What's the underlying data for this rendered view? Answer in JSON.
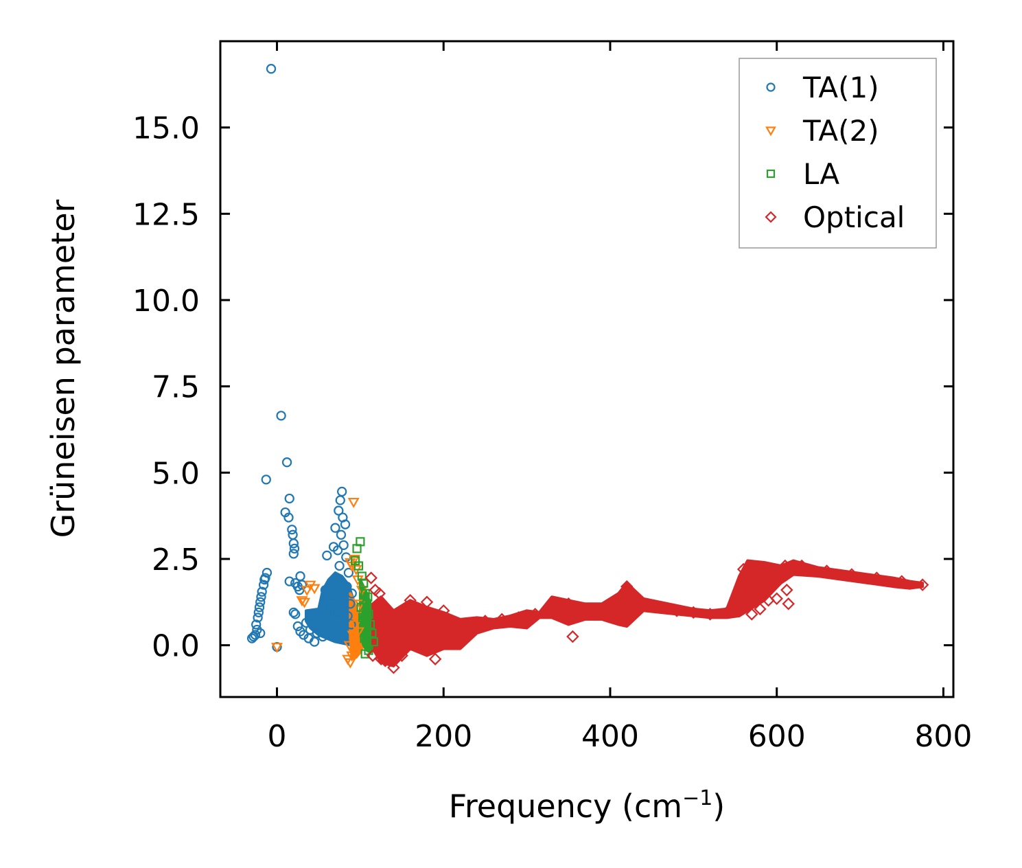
{
  "chart_data": {
    "type": "scatter",
    "title": "",
    "xlabel": "Frequency (cm",
    "xlabel_sup": "−1",
    "xlabel_close": ")",
    "ylabel": "Grüneisen parameter",
    "xlim": [
      -68,
      812
    ],
    "ylim": [
      -1.5,
      17.5
    ],
    "xticks": [
      0,
      200,
      400,
      600,
      800
    ],
    "xtick_labels": [
      "0",
      "200",
      "400",
      "600",
      "800"
    ],
    "yticks": [
      0.0,
      2.5,
      5.0,
      7.5,
      10.0,
      12.5,
      15.0
    ],
    "ytick_labels": [
      "0.0",
      "2.5",
      "5.0",
      "7.5",
      "10.0",
      "12.5",
      "15.0"
    ],
    "legend_position": "top-right",
    "series": [
      {
        "name": "TA(1)",
        "marker": "circle",
        "color": "#1f77b4",
        "points": [
          [
            -7,
            16.7
          ],
          [
            5,
            6.65
          ],
          [
            12,
            5.3
          ],
          [
            -13,
            4.8
          ],
          [
            15,
            4.25
          ],
          [
            10,
            3.85
          ],
          [
            14,
            3.7
          ],
          [
            18,
            3.35
          ],
          [
            19,
            3.2
          ],
          [
            20,
            2.95
          ],
          [
            21,
            2.8
          ],
          [
            20,
            2.65
          ],
          [
            -30,
            0.2
          ],
          [
            -28,
            0.25
          ],
          [
            -26,
            0.3
          ],
          [
            -24,
            0.45
          ],
          [
            -25,
            0.6
          ],
          [
            -23,
            0.8
          ],
          [
            -22,
            0.95
          ],
          [
            -21,
            1.1
          ],
          [
            -20,
            1.25
          ],
          [
            -19,
            1.4
          ],
          [
            -18,
            1.55
          ],
          [
            -16,
            1.75
          ],
          [
            -15,
            1.9
          ],
          [
            -14,
            1.95
          ],
          [
            -12,
            2.1
          ],
          [
            -20,
            0.35
          ],
          [
            15,
            1.85
          ],
          [
            22,
            1.8
          ],
          [
            25,
            1.7
          ],
          [
            27,
            1.6
          ],
          [
            28,
            2.0
          ],
          [
            30,
            1.75
          ],
          [
            20,
            0.95
          ],
          [
            22,
            0.9
          ],
          [
            25,
            0.55
          ],
          [
            28,
            0.4
          ],
          [
            32,
            0.3
          ],
          [
            35,
            0.65
          ],
          [
            38,
            0.2
          ],
          [
            40,
            0.45
          ],
          [
            42,
            0.85
          ],
          [
            45,
            0.1
          ],
          [
            48,
            0.35
          ],
          [
            50,
            0.6
          ],
          [
            52,
            0.9
          ],
          [
            55,
            0.25
          ],
          [
            58,
            1.6
          ],
          [
            60,
            2.6
          ],
          [
            62,
            1.3
          ],
          [
            65,
            0.5
          ],
          [
            68,
            2.85
          ],
          [
            70,
            3.4
          ],
          [
            72,
            1.9
          ],
          [
            74,
            3.9
          ],
          [
            75,
            2.3
          ],
          [
            77,
            3.2
          ],
          [
            78,
            4.45
          ],
          [
            80,
            2.9
          ],
          [
            82,
            3.5
          ],
          [
            84,
            1.7
          ],
          [
            86,
            2.1
          ],
          [
            88,
            1.2
          ],
          [
            90,
            1.5
          ],
          [
            76,
            4.2
          ],
          [
            79,
            3.7
          ],
          [
            83,
            2.55
          ],
          [
            73,
            2.75
          ],
          [
            66,
            1.05
          ],
          [
            0,
            -0.05
          ],
          [
            62,
            0.75
          ],
          [
            67,
            1.15
          ],
          [
            71,
            0.95
          ],
          [
            85,
            0.85
          ],
          [
            89,
            0.6
          ]
        ]
      },
      {
        "name": "TA(2)",
        "marker": "triangle-down",
        "color": "#ff7f0e",
        "points": [
          [
            92,
            4.15
          ],
          [
            0,
            -0.05
          ],
          [
            30,
            1.3
          ],
          [
            33,
            1.25
          ],
          [
            36,
            1.6
          ],
          [
            40,
            1.75
          ],
          [
            45,
            1.65
          ],
          [
            88,
            2.4
          ],
          [
            90,
            2.3
          ],
          [
            93,
            2.5
          ],
          [
            95,
            2.2
          ],
          [
            97,
            1.9
          ],
          [
            85,
            -0.4
          ],
          [
            88,
            -0.5
          ],
          [
            90,
            -0.3
          ],
          [
            92,
            -0.2
          ],
          [
            95,
            0.1
          ],
          [
            98,
            0.4
          ],
          [
            100,
            1.2
          ],
          [
            102,
            1.6
          ],
          [
            96,
            0.9
          ],
          [
            94,
            0.6
          ],
          [
            91,
            0.3
          ],
          [
            87,
            0.0
          ]
        ]
      },
      {
        "name": "LA",
        "marker": "square",
        "color": "#2ca02c",
        "points": [
          [
            100,
            3.0
          ],
          [
            96,
            2.8
          ],
          [
            94,
            2.45
          ],
          [
            98,
            2.3
          ],
          [
            102,
            2.0
          ],
          [
            104,
            1.8
          ],
          [
            106,
            1.5
          ],
          [
            108,
            1.2
          ],
          [
            110,
            0.9
          ],
          [
            112,
            0.6
          ],
          [
            114,
            0.35
          ],
          [
            106,
            -0.25
          ],
          [
            110,
            -0.15
          ],
          [
            116,
            0.1
          ],
          [
            103,
            0.8
          ],
          [
            105,
            0.2
          ],
          [
            101,
            1.1
          ],
          [
            109,
            1.4
          ]
        ]
      },
      {
        "name": "Optical",
        "marker": "diamond",
        "color": "#d62728",
        "points": [
          [
            113,
            1.95
          ],
          [
            118,
            1.6
          ],
          [
            123,
            1.5
          ],
          [
            115,
            -0.3
          ],
          [
            125,
            -0.4
          ],
          [
            130,
            -0.45
          ],
          [
            140,
            -0.65
          ],
          [
            150,
            -0.3
          ],
          [
            160,
            1.3
          ],
          [
            180,
            1.25
          ],
          [
            190,
            -0.4
          ],
          [
            200,
            1.0
          ],
          [
            220,
            0.2
          ],
          [
            240,
            0.6
          ],
          [
            250,
            0.7
          ],
          [
            270,
            0.75
          ],
          [
            290,
            0.8
          ],
          [
            310,
            0.9
          ],
          [
            330,
            1.05
          ],
          [
            350,
            1.2
          ],
          [
            355,
            0.25
          ],
          [
            380,
            1.0
          ],
          [
            400,
            1.15
          ],
          [
            420,
            1.7
          ],
          [
            440,
            1.2
          ],
          [
            460,
            1.1
          ],
          [
            480,
            1.0
          ],
          [
            500,
            0.95
          ],
          [
            520,
            0.9
          ],
          [
            540,
            0.95
          ],
          [
            560,
            2.2
          ],
          [
            570,
            0.9
          ],
          [
            580,
            1.05
          ],
          [
            590,
            1.3
          ],
          [
            600,
            1.35
          ],
          [
            610,
            2.3
          ],
          [
            612,
            1.6
          ],
          [
            614,
            1.2
          ],
          [
            630,
            2.3
          ],
          [
            660,
            2.15
          ],
          [
            690,
            2.05
          ],
          [
            720,
            1.95
          ],
          [
            750,
            1.85
          ],
          [
            775,
            1.75
          ]
        ]
      }
    ],
    "bands": [
      {
        "series": "TA(1)",
        "color": "#1f77b4",
        "upper": [
          [
            35,
            1.0
          ],
          [
            50,
            1.05
          ],
          [
            55,
            1.6
          ],
          [
            62,
            1.9
          ],
          [
            70,
            2.1
          ],
          [
            78,
            2.0
          ],
          [
            86,
            1.75
          ],
          [
            92,
            1.3
          ],
          [
            96,
            0.9
          ]
        ],
        "lower": [
          [
            96,
            0.1
          ],
          [
            90,
            0.0
          ],
          [
            80,
            0.05
          ],
          [
            70,
            0.1
          ],
          [
            60,
            0.2
          ],
          [
            50,
            0.3
          ],
          [
            40,
            0.5
          ],
          [
            35,
            0.7
          ]
        ]
      },
      {
        "series": "TA(2)",
        "color": "#ff7f0e",
        "upper": [
          [
            88,
            1.5
          ],
          [
            92,
            1.3
          ],
          [
            96,
            1.0
          ],
          [
            100,
            0.9
          ],
          [
            104,
            0.7
          ]
        ],
        "lower": [
          [
            104,
            0.0
          ],
          [
            100,
            -0.2
          ],
          [
            95,
            -0.35
          ],
          [
            90,
            -0.4
          ],
          [
            88,
            0.2
          ]
        ]
      },
      {
        "series": "LA",
        "color": "#2ca02c",
        "upper": [
          [
            100,
            1.9
          ],
          [
            104,
            1.7
          ],
          [
            108,
            1.5
          ],
          [
            112,
            1.2
          ],
          [
            116,
            0.9
          ]
        ],
        "lower": [
          [
            116,
            -0.1
          ],
          [
            112,
            -0.2
          ],
          [
            108,
            -0.15
          ],
          [
            104,
            0.0
          ],
          [
            100,
            0.3
          ]
        ]
      },
      {
        "series": "Optical",
        "color": "#d62728",
        "upper": [
          [
            115,
            1.2
          ],
          [
            125,
            1.4
          ],
          [
            140,
            1.0
          ],
          [
            160,
            1.3
          ],
          [
            180,
            1.1
          ],
          [
            200,
            0.95
          ],
          [
            220,
            0.75
          ],
          [
            240,
            0.8
          ],
          [
            260,
            0.75
          ],
          [
            280,
            0.85
          ],
          [
            300,
            1.0
          ],
          [
            315,
            0.95
          ],
          [
            330,
            1.4
          ],
          [
            350,
            1.3
          ],
          [
            370,
            1.2
          ],
          [
            390,
            1.2
          ],
          [
            410,
            1.5
          ],
          [
            420,
            1.8
          ],
          [
            440,
            1.35
          ],
          [
            460,
            1.25
          ],
          [
            480,
            1.15
          ],
          [
            500,
            1.05
          ],
          [
            520,
            1.0
          ],
          [
            540,
            1.05
          ],
          [
            555,
            2.0
          ],
          [
            565,
            2.45
          ],
          [
            585,
            2.4
          ],
          [
            605,
            2.3
          ],
          [
            620,
            2.45
          ],
          [
            650,
            2.25
          ],
          [
            680,
            2.15
          ],
          [
            710,
            2.05
          ],
          [
            740,
            1.95
          ],
          [
            760,
            1.85
          ],
          [
            775,
            1.8
          ]
        ],
        "lower": [
          [
            775,
            1.7
          ],
          [
            760,
            1.65
          ],
          [
            740,
            1.7
          ],
          [
            710,
            1.8
          ],
          [
            680,
            1.9
          ],
          [
            650,
            2.0
          ],
          [
            620,
            2.05
          ],
          [
            605,
            1.8
          ],
          [
            585,
            1.3
          ],
          [
            565,
            1.0
          ],
          [
            555,
            0.85
          ],
          [
            540,
            0.8
          ],
          [
            520,
            0.8
          ],
          [
            500,
            0.85
          ],
          [
            480,
            0.9
          ],
          [
            460,
            0.95
          ],
          [
            440,
            1.0
          ],
          [
            420,
            0.55
          ],
          [
            410,
            0.6
          ],
          [
            390,
            0.75
          ],
          [
            370,
            0.75
          ],
          [
            350,
            0.6
          ],
          [
            330,
            0.8
          ],
          [
            315,
            0.8
          ],
          [
            300,
            0.5
          ],
          [
            280,
            0.55
          ],
          [
            260,
            0.5
          ],
          [
            240,
            0.35
          ],
          [
            220,
            -0.1
          ],
          [
            200,
            -0.1
          ],
          [
            180,
            -0.3
          ],
          [
            160,
            -0.1
          ],
          [
            140,
            -0.6
          ],
          [
            125,
            -0.5
          ],
          [
            115,
            -0.1
          ]
        ]
      }
    ]
  }
}
